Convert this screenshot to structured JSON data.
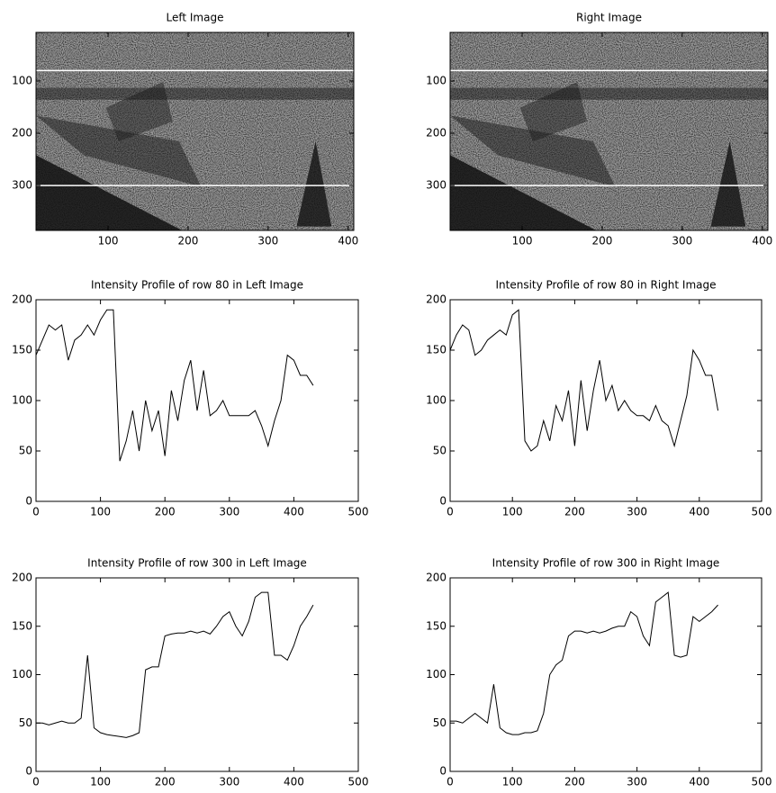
{
  "chart_data": [
    {
      "type": "image",
      "title": "Left Image",
      "xlim": [
        10,
        407
      ],
      "ylim": [
        7,
        386
      ],
      "y_reversed": true,
      "xticks": [
        100,
        200,
        300,
        400
      ],
      "yticks": [
        100,
        200,
        300
      ],
      "row_lines": [
        80,
        300
      ]
    },
    {
      "type": "image",
      "title": "Right Image",
      "xlim": [
        10,
        407
      ],
      "ylim": [
        7,
        386
      ],
      "y_reversed": true,
      "xticks": [
        100,
        200,
        300,
        400
      ],
      "yticks": [
        100,
        200,
        300
      ],
      "row_lines": [
        80,
        300
      ]
    },
    {
      "type": "line",
      "title": "Intensity Profile of row 80 in Left Image",
      "color": "#000000",
      "x": [
        0,
        10,
        20,
        30,
        40,
        50,
        60,
        70,
        80,
        90,
        100,
        110,
        120,
        130,
        140,
        150,
        160,
        170,
        180,
        190,
        200,
        210,
        220,
        230,
        240,
        250,
        260,
        270,
        280,
        290,
        300,
        310,
        320,
        330,
        340,
        350,
        360,
        370,
        380,
        390,
        400,
        410,
        420,
        430
      ],
      "values": [
        145,
        160,
        175,
        170,
        175,
        140,
        160,
        165,
        175,
        165,
        180,
        190,
        190,
        40,
        60,
        90,
        50,
        100,
        70,
        90,
        45,
        110,
        80,
        120,
        140,
        90,
        130,
        85,
        90,
        100,
        85,
        85,
        85,
        85,
        90,
        75,
        55,
        80,
        100,
        145,
        140,
        125,
        125,
        115
      ],
      "xlim": [
        0,
        500
      ],
      "ylim": [
        0,
        200
      ],
      "xticks": [
        0,
        100,
        200,
        300,
        400,
        500
      ],
      "yticks": [
        0,
        50,
        100,
        150,
        200
      ]
    },
    {
      "type": "line",
      "title": "Intensity Profile of row 80 in Right Image",
      "color": "#000000",
      "x": [
        0,
        10,
        20,
        30,
        40,
        50,
        60,
        70,
        80,
        90,
        100,
        110,
        120,
        130,
        140,
        150,
        160,
        170,
        180,
        190,
        200,
        210,
        220,
        230,
        240,
        250,
        260,
        270,
        280,
        290,
        300,
        310,
        320,
        330,
        340,
        350,
        360,
        370,
        380,
        390,
        400,
        410,
        420,
        430
      ],
      "values": [
        150,
        165,
        175,
        170,
        145,
        150,
        160,
        165,
        170,
        165,
        185,
        190,
        60,
        50,
        55,
        80,
        60,
        95,
        80,
        110,
        55,
        120,
        70,
        110,
        140,
        100,
        115,
        90,
        100,
        90,
        85,
        85,
        80,
        95,
        80,
        75,
        55,
        80,
        105,
        150,
        140,
        125,
        125,
        90
      ],
      "xlim": [
        0,
        500
      ],
      "ylim": [
        0,
        200
      ],
      "xticks": [
        0,
        100,
        200,
        300,
        400,
        500
      ],
      "yticks": [
        0,
        50,
        100,
        150,
        200
      ]
    },
    {
      "type": "line",
      "title": "Intensity Profile of row 300 in Left Image",
      "color": "#000000",
      "x": [
        0,
        10,
        20,
        30,
        40,
        50,
        60,
        70,
        80,
        90,
        100,
        110,
        120,
        130,
        140,
        150,
        160,
        170,
        180,
        190,
        200,
        210,
        220,
        230,
        240,
        250,
        260,
        270,
        280,
        290,
        300,
        310,
        320,
        330,
        340,
        350,
        360,
        370,
        380,
        390,
        400,
        410,
        420,
        430
      ],
      "values": [
        50,
        50,
        48,
        50,
        52,
        50,
        50,
        55,
        120,
        45,
        40,
        38,
        37,
        36,
        35,
        37,
        40,
        105,
        108,
        108,
        140,
        142,
        143,
        143,
        145,
        143,
        145,
        142,
        150,
        160,
        165,
        150,
        140,
        155,
        180,
        185,
        185,
        120,
        120,
        115,
        130,
        150,
        160,
        172
      ],
      "xlim": [
        0,
        500
      ],
      "ylim": [
        0,
        200
      ],
      "xticks": [
        0,
        100,
        200,
        300,
        400,
        500
      ],
      "yticks": [
        0,
        50,
        100,
        150,
        200
      ]
    },
    {
      "type": "line",
      "title": "Intensity Profile of row 300 in Right Image",
      "color": "#000000",
      "x": [
        0,
        10,
        20,
        30,
        40,
        50,
        60,
        70,
        80,
        90,
        100,
        110,
        120,
        130,
        140,
        150,
        160,
        170,
        180,
        190,
        200,
        210,
        220,
        230,
        240,
        250,
        260,
        270,
        280,
        290,
        300,
        310,
        320,
        330,
        340,
        350,
        360,
        370,
        380,
        390,
        400,
        410,
        420,
        430
      ],
      "values": [
        52,
        52,
        50,
        55,
        60,
        55,
        50,
        90,
        45,
        40,
        38,
        38,
        40,
        40,
        42,
        60,
        100,
        110,
        115,
        140,
        145,
        145,
        143,
        145,
        143,
        145,
        148,
        150,
        150,
        165,
        160,
        140,
        130,
        175,
        180,
        185,
        120,
        118,
        120,
        160,
        155,
        160,
        165,
        172
      ],
      "xlim": [
        0,
        500
      ],
      "ylim": [
        0,
        200
      ],
      "xticks": [
        0,
        100,
        200,
        300,
        400,
        500
      ],
      "yticks": [
        0,
        50,
        100,
        150,
        200
      ]
    }
  ]
}
